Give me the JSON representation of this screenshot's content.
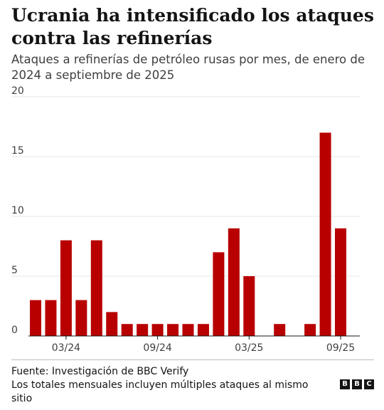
{
  "header": {
    "title": "Ucrania ha intensificado los ataques contra las refinerías",
    "subtitle": "Ataques a refinerías de petróleo rusas por mes, de enero de 2024 a septiembre de 2025"
  },
  "footer": {
    "source": "Fuente: Investigación de BBC Verify",
    "note": "Los totales mensuales incluyen múltiples ataques al mismo sitio",
    "logo_letters": [
      "B",
      "B",
      "C"
    ]
  },
  "colors": {
    "bar": "#b80000",
    "grid": "#e6e6e6",
    "axis": "#141414"
  },
  "chart_data": {
    "type": "bar",
    "categories": [
      "01/24",
      "02/24",
      "03/24",
      "04/24",
      "05/24",
      "06/24",
      "07/24",
      "08/24",
      "09/24",
      "10/24",
      "11/24",
      "12/24",
      "01/25",
      "02/25",
      "03/25",
      "04/25",
      "05/25",
      "06/25",
      "07/25",
      "08/25",
      "09/25"
    ],
    "values": [
      3,
      3,
      8,
      3,
      8,
      2,
      1,
      1,
      1,
      1,
      1,
      1,
      7,
      9,
      5,
      0,
      1,
      0,
      1,
      17,
      9
    ],
    "x_tick_labels": [
      "03/24",
      "09/24",
      "03/25",
      "09/25"
    ],
    "y_ticks": [
      0,
      5,
      10,
      15,
      20
    ],
    "ylim": [
      0,
      20
    ],
    "xlabel": "",
    "ylabel": "",
    "grid": true
  }
}
